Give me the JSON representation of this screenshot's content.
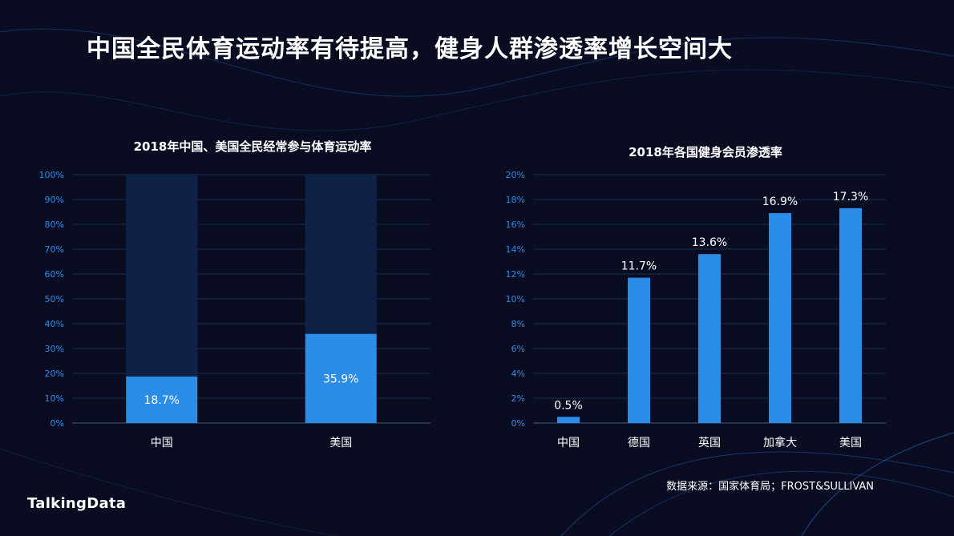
{
  "main_title": "中国全民体育运动率有待提高，健身人群渗透率增长空间大",
  "source": "数据来源：国家体育局；FROST&SULLIVAN",
  "brand": "TalkingData",
  "colors": {
    "background": "#0a0d22",
    "bar_primary": "#2b8de8",
    "bar_remainder": "#0f2147",
    "grid": "#16304a",
    "tick": "#2b8de8"
  },
  "chart_data": [
    {
      "type": "bar",
      "stacked": true,
      "title": "2018年中国、美国全民经常参与体育运动率",
      "categories": [
        "中国",
        "美国"
      ],
      "values": [
        18.7,
        35.9
      ],
      "labels": [
        "18.7%",
        "35.9%"
      ],
      "total": 100,
      "ylim": [
        0,
        100
      ],
      "yticks": [
        "0%",
        "10%",
        "20%",
        "30%",
        "40%",
        "50%",
        "60%",
        "70%",
        "80%",
        "90%",
        "100%"
      ],
      "grid": true
    },
    {
      "type": "bar",
      "title": "2018年各国健身会员渗透率",
      "categories": [
        "中国",
        "德国",
        "英国",
        "加拿大",
        "美国"
      ],
      "values": [
        0.5,
        11.7,
        13.6,
        16.9,
        17.3
      ],
      "labels": [
        "0.5%",
        "11.7%",
        "13.6%",
        "16.9%",
        "17.3%"
      ],
      "ylim": [
        0,
        20
      ],
      "yticks": [
        "0%",
        "2%",
        "4%",
        "6%",
        "8%",
        "10%",
        "12%",
        "14%",
        "16%",
        "18%",
        "20%"
      ],
      "grid": true
    }
  ]
}
